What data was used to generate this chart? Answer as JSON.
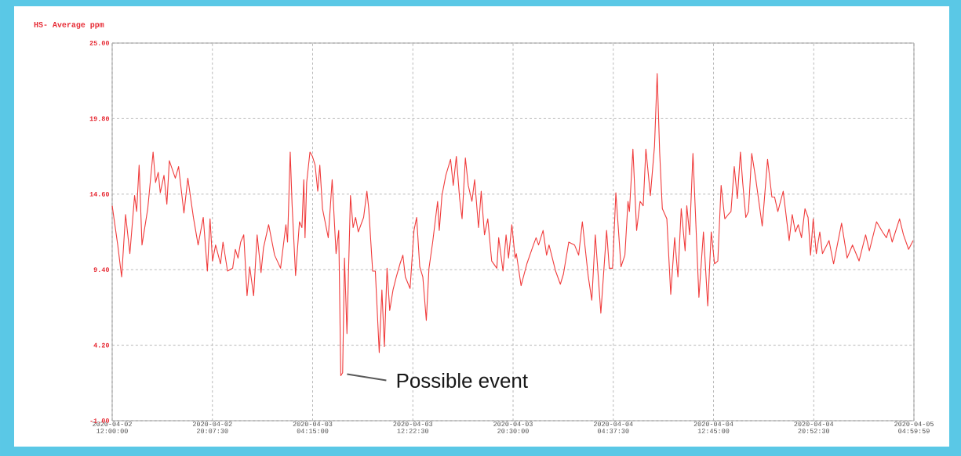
{
  "chart_data": {
    "type": "line",
    "title": "HS- Average ppm",
    "x": [
      "2020-04-02T12:00",
      "2020-04-02T12:27",
      "2020-04-02T12:46",
      "2020-04-02T13:05",
      "2020-04-02T13:26",
      "2020-04-02T13:49",
      "2020-04-02T13:59",
      "2020-04-02T14:11",
      "2020-04-02T14:25",
      "2020-04-02T14:53",
      "2020-04-02T15:19",
      "2020-04-02T15:31",
      "2020-04-02T15:44",
      "2020-04-02T15:54",
      "2020-04-02T16:12",
      "2020-04-02T16:26",
      "2020-04-02T16:38",
      "2020-04-02T17:07",
      "2020-04-02T17:23",
      "2020-04-02T17:49",
      "2020-04-02T18:08",
      "2020-04-02T18:35",
      "2020-04-02T18:58",
      "2020-04-02T19:23",
      "2020-04-02T19:43",
      "2020-04-02T19:56",
      "2020-04-02T20:08",
      "2020-04-02T20:23",
      "2020-04-02T20:47",
      "2020-04-02T20:59",
      "2020-04-02T21:21",
      "2020-04-02T21:46",
      "2020-04-02T21:59",
      "2020-04-02T22:12",
      "2020-04-02T22:25",
      "2020-04-02T22:40",
      "2020-04-02T22:56",
      "2020-04-02T23:09",
      "2020-04-02T23:28",
      "2020-04-02T23:45",
      "2020-04-03T00:04",
      "2020-04-03T00:16",
      "2020-04-03T00:41",
      "2020-04-03T01:10",
      "2020-04-03T01:39",
      "2020-04-03T02:05",
      "2020-04-03T02:13",
      "2020-04-03T02:26",
      "2020-04-03T02:35",
      "2020-04-03T02:52",
      "2020-04-03T03:11",
      "2020-04-03T03:23",
      "2020-04-03T03:32",
      "2020-04-03T03:38",
      "2020-04-03T03:46",
      "2020-04-03T04:02",
      "2020-04-03T04:14",
      "2020-04-03T04:27",
      "2020-04-03T04:40",
      "2020-04-03T04:50",
      "2020-04-03T05:03",
      "2020-04-03T05:31",
      "2020-04-03T05:50",
      "2020-04-03T06:09",
      "2020-04-03T06:22",
      "2020-04-03T06:32",
      "2020-04-03T06:41",
      "2020-04-03T06:50",
      "2020-04-03T07:02",
      "2020-04-03T07:19",
      "2020-04-03T07:32",
      "2020-04-03T07:44",
      "2020-04-03T07:57",
      "2020-04-03T08:23",
      "2020-04-03T08:39",
      "2020-04-03T08:48",
      "2020-04-03T09:07",
      "2020-04-03T09:20",
      "2020-04-03T09:39",
      "2020-04-03T09:52",
      "2020-04-03T10:04",
      "2020-04-03T10:17",
      "2020-04-03T10:30",
      "2020-04-03T10:46",
      "2020-04-03T11:02",
      "2020-04-03T11:20",
      "2020-04-03T11:34",
      "2020-04-03T11:46",
      "2020-04-03T12:09",
      "2020-04-03T12:28",
      "2020-04-03T12:41",
      "2020-04-03T12:56",
      "2020-04-03T13:11",
      "2020-04-03T13:28",
      "2020-04-03T13:41",
      "2020-04-03T13:59",
      "2020-04-03T14:23",
      "2020-04-03T14:31",
      "2020-04-03T14:44",
      "2020-04-03T15:03",
      "2020-04-03T15:26",
      "2020-04-03T15:39",
      "2020-04-03T15:54",
      "2020-04-03T16:10",
      "2020-04-03T16:22",
      "2020-04-03T16:38",
      "2020-04-03T16:52",
      "2020-04-03T17:10",
      "2020-04-03T17:23",
      "2020-04-03T17:42",
      "2020-04-03T17:55",
      "2020-04-03T18:11",
      "2020-04-03T18:27",
      "2020-04-03T18:46",
      "2020-04-03T19:11",
      "2020-04-03T19:20",
      "2020-04-03T19:41",
      "2020-04-03T19:56",
      "2020-04-03T20:08",
      "2020-04-03T20:24",
      "2020-04-03T20:40",
      "2020-04-03T20:46",
      "2020-04-03T21:09",
      "2020-04-03T21:37",
      "2020-04-03T22:09",
      "2020-04-03T22:22",
      "2020-04-03T22:34",
      "2020-04-03T22:56",
      "2020-04-03T23:13",
      "2020-04-03T23:25",
      "2020-04-03T23:57",
      "2020-04-04T00:20",
      "2020-04-04T00:35",
      "2020-04-04T01:01",
      "2020-04-04T01:29",
      "2020-04-04T01:49",
      "2020-04-04T02:07",
      "2020-04-04T02:36",
      "2020-04-04T02:53",
      "2020-04-04T03:10",
      "2020-04-04T03:37",
      "2020-04-04T04:05",
      "2020-04-04T04:18",
      "2020-04-04T04:34",
      "2020-04-04T04:50",
      "2020-04-04T05:15",
      "2020-04-04T05:34",
      "2020-04-04T05:49",
      "2020-04-04T05:56",
      "2020-04-04T06:13",
      "2020-04-04T06:31",
      "2020-04-04T06:48",
      "2020-04-04T07:03",
      "2020-04-04T07:16",
      "2020-04-04T07:38",
      "2020-04-04T07:58",
      "2020-04-04T08:11",
      "2020-04-04T08:23",
      "2020-04-04T08:36",
      "2020-04-04T08:58",
      "2020-04-04T09:17",
      "2020-04-04T09:36",
      "2020-04-04T09:52",
      "2020-04-04T10:08",
      "2020-04-04T10:27",
      "2020-04-04T10:35",
      "2020-04-04T10:49",
      "2020-04-04T11:05",
      "2020-04-04T11:34",
      "2020-04-04T11:56",
      "2020-04-04T12:17",
      "2020-04-04T12:34",
      "2020-04-04T12:50",
      "2020-04-04T13:06",
      "2020-04-04T13:22",
      "2020-04-04T13:40",
      "2020-04-04T13:57",
      "2020-04-04T14:10",
      "2020-04-04T14:26",
      "2020-04-04T14:41",
      "2020-04-04T14:56",
      "2020-04-04T15:07",
      "2020-04-04T15:22",
      "2020-04-04T15:35",
      "2020-04-04T15:51",
      "2020-04-04T16:10",
      "2020-04-04T16:42",
      "2020-04-04T17:08",
      "2020-04-04T17:29",
      "2020-04-04T17:42",
      "2020-04-04T17:58",
      "2020-04-04T18:24",
      "2020-04-04T18:53",
      "2020-04-04T19:08",
      "2020-04-04T19:23",
      "2020-04-04T19:37",
      "2020-04-04T19:53",
      "2020-04-04T20:10",
      "2020-04-04T20:25",
      "2020-04-04T20:37",
      "2020-04-04T20:50",
      "2020-04-04T21:05",
      "2020-04-04T21:22",
      "2020-04-04T21:35",
      "2020-04-04T22:07",
      "2020-04-04T22:29",
      "2020-04-04T23:08",
      "2020-04-04T23:35",
      "2020-04-05T00:01",
      "2020-04-05T00:33",
      "2020-04-05T01:05",
      "2020-04-05T01:23",
      "2020-04-05T01:58",
      "2020-04-05T02:27",
      "2020-04-05T02:46",
      "2020-04-05T02:59",
      "2020-04-05T03:14",
      "2020-04-05T03:50",
      "2020-04-05T04:09",
      "2020-04-05T04:34",
      "2020-04-05T04:56"
    ],
    "series": [
      {
        "color": "#f03c3c",
        "values": [
          13.8,
          11.1,
          8.9,
          13.2,
          10.5,
          14.5,
          13.4,
          16.6,
          11.1,
          13.6,
          17.5,
          15.4,
          16.1,
          14.7,
          15.9,
          13.9,
          16.9,
          15.7,
          16.5,
          13.3,
          15.7,
          13.0,
          11.1,
          13.0,
          9.3,
          12.9,
          10.0,
          11.1,
          9.8,
          11.3,
          9.3,
          9.5,
          10.8,
          10.2,
          11.3,
          11.8,
          7.6,
          9.6,
          7.6,
          11.8,
          9.2,
          10.9,
          12.5,
          10.4,
          9.5,
          12.5,
          11.3,
          17.5,
          13.9,
          9.0,
          12.7,
          12.3,
          15.6,
          11.6,
          15.4,
          17.5,
          17.2,
          16.6,
          14.8,
          16.6,
          13.6,
          11.6,
          15.6,
          10.5,
          12.1,
          2.1,
          2.3,
          10.2,
          5.0,
          14.5,
          12.3,
          13.0,
          12.0,
          13.0,
          14.8,
          13.6,
          9.3,
          9.3,
          3.7,
          8.0,
          4.1,
          9.5,
          6.6,
          8.0,
          8.9,
          9.8,
          10.4,
          8.9,
          8.1,
          12.1,
          13.0,
          9.6,
          8.9,
          5.9,
          9.5,
          11.3,
          14.1,
          12.1,
          14.5,
          15.9,
          17.0,
          15.2,
          17.2,
          14.3,
          12.9,
          17.1,
          15.2,
          14.1,
          15.6,
          12.3,
          14.8,
          11.8,
          12.9,
          10.0,
          9.5,
          11.6,
          9.3,
          11.8,
          10.2,
          12.5,
          10.2,
          10.5,
          8.3,
          9.8,
          11.1,
          11.6,
          11.1,
          12.1,
          10.4,
          11.1,
          9.3,
          8.4,
          9.1,
          11.3,
          11.1,
          10.4,
          12.7,
          8.9,
          7.3,
          11.8,
          6.4,
          12.1,
          9.5,
          9.5,
          14.7,
          9.6,
          10.4,
          14.1,
          13.4,
          17.7,
          12.1,
          14.1,
          13.8,
          17.7,
          14.5,
          17.9,
          22.9,
          17.5,
          13.6,
          12.9,
          7.7,
          11.6,
          8.9,
          13.6,
          10.7,
          13.8,
          11.8,
          17.4,
          7.5,
          12.0,
          6.9,
          12.0,
          9.8,
          10.0,
          15.2,
          12.9,
          13.2,
          13.4,
          16.5,
          14.3,
          17.5,
          15.4,
          13.0,
          13.4,
          17.4,
          15.7,
          12.4,
          17.0,
          14.4,
          14.4,
          13.4,
          14.8,
          11.4,
          13.2,
          12.0,
          12.5,
          11.6,
          13.6,
          13.0,
          10.4,
          12.9,
          10.5,
          12.0,
          10.5,
          11.4,
          9.8,
          12.6,
          10.2,
          11.1,
          10.0,
          11.8,
          10.7,
          12.7,
          12.0,
          11.6,
          12.2,
          11.3,
          12.9,
          11.8,
          10.8,
          11.4
        ]
      }
    ],
    "xlim": [
      "2020-04-02T12:00:00",
      "2020-04-05T04:59:59"
    ],
    "xticks": [
      {
        "value": "2020-04-02T12:00:00",
        "label": "2020-04-02 12:00:00"
      },
      {
        "value": "2020-04-02T20:07:30",
        "label": "2020-04-02 20:07:30"
      },
      {
        "value": "2020-04-03T04:15:00",
        "label": "2020-04-03 04:15:00"
      },
      {
        "value": "2020-04-03T12:22:30",
        "label": "2020-04-03 12:22:30"
      },
      {
        "value": "2020-04-03T20:30:00",
        "label": "2020-04-03 20:30:00"
      },
      {
        "value": "2020-04-04T04:37:30",
        "label": "2020-04-04 04:37:30"
      },
      {
        "value": "2020-04-04T12:45:00",
        "label": "2020-04-04 12:45:00"
      },
      {
        "value": "2020-04-04T20:52:30",
        "label": "2020-04-04 20:52:30"
      },
      {
        "value": "2020-04-05T04:59:59",
        "label": "2020-04-05 04:59:59"
      }
    ],
    "ylim": [
      -1,
      25
    ],
    "yticks": [
      {
        "value": -1,
        "label": "-1.00"
      },
      {
        "value": 4.2,
        "label": "4.20"
      },
      {
        "value": 9.4,
        "label": "9.40"
      },
      {
        "value": 14.6,
        "label": "14.60"
      },
      {
        "value": 19.8,
        "label": "19.80"
      },
      {
        "value": 25,
        "label": "25.00"
      }
    ],
    "grid": true,
    "annotations": [
      {
        "text": "Possible event",
        "x": "2020-04-03T06:32",
        "y": 2.1
      }
    ]
  }
}
